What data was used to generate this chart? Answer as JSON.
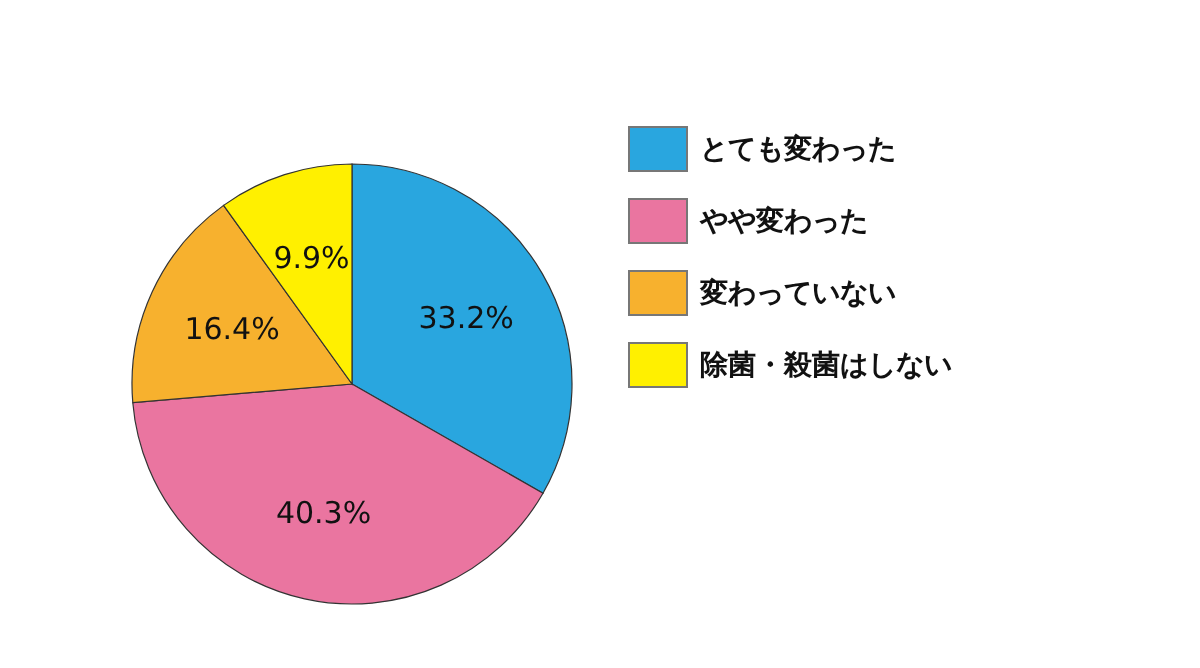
{
  "chart_data": {
    "type": "pie",
    "categories": [
      "とても変わった",
      "やや変わった",
      "変わっていない",
      "除菌・殺菌はしない"
    ],
    "values": [
      33.2,
      40.3,
      16.4,
      9.9
    ],
    "value_labels": [
      "33.2%",
      "40.3%",
      "16.4%",
      "9.9%"
    ],
    "colors": [
      "#29a6df",
      "#ea75a0",
      "#f7b12e",
      "#fff000"
    ],
    "legend": "right"
  }
}
